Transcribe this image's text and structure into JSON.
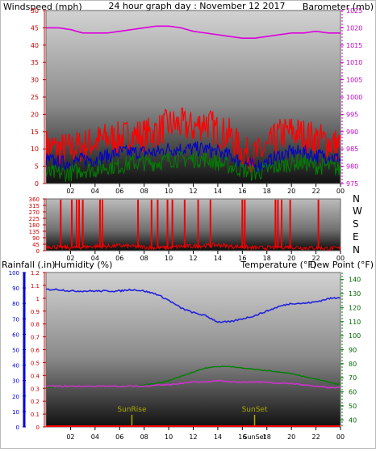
{
  "colors": {
    "wind_gust": "#ff0000",
    "wind_avg": "#0000cc",
    "wind_low": "#008000",
    "barometer": "#dd00dd",
    "direction": "#ee0000",
    "rain": "#ff0000",
    "humidity": "#2222dd",
    "temperature": "#008000",
    "dewpoint": "#cc33cc",
    "sun": "#aaaa00"
  },
  "top": {
    "left_axis_label": "Windspeed (mph)",
    "center_title": "24 hour graph day : November 12 2017",
    "right_axis_label": "Barometer (mb)"
  },
  "middle": {
    "compass_labels": [
      "N",
      "W",
      "S",
      "E",
      "N"
    ]
  },
  "bottom": {
    "rain_label": "Rainfall (.in)",
    "humidity_label": "Humidity (%)",
    "temp_label": "Temperature (°F)",
    "dew_label": "Dew Point (°F)",
    "sunrise_label": "SunRise",
    "sunset_label": "SunSet",
    "sunset_tick_label": "SunSet"
  },
  "chart_data": [
    {
      "type": "line",
      "name": "wind_and_barometer",
      "x_ticks": [
        "02",
        "04",
        "06",
        "08",
        "10",
        "12",
        "14",
        "16",
        "18",
        "20",
        "22",
        "00"
      ],
      "xlim": [
        0,
        24
      ],
      "ylabel": "Windspeed (mph)",
      "ylim": [
        0,
        50
      ],
      "y_ticks": [
        0,
        5,
        10,
        15,
        20,
        25,
        30,
        35,
        40,
        45,
        50
      ],
      "y2label": "Barometer (mb)",
      "y2lim": [
        975,
        1025
      ],
      "y2_ticks": [
        975,
        980,
        985,
        990,
        995,
        1000,
        1005,
        1010,
        1015,
        1020,
        1025
      ],
      "series": [
        {
          "key": "wind_gust",
          "axis": "y",
          "x": [
            0,
            1,
            2,
            3,
            4,
            5,
            6,
            7,
            8,
            9,
            10,
            11,
            12,
            13,
            14,
            15,
            16,
            17,
            18,
            19,
            20,
            21,
            22,
            23,
            24
          ],
          "values": [
            11,
            10,
            10,
            11,
            12,
            13,
            13,
            14,
            14,
            15,
            17,
            17,
            16,
            18,
            15,
            14,
            9,
            8,
            10,
            14,
            15,
            14,
            13,
            12,
            11
          ]
        },
        {
          "key": "wind_avg",
          "axis": "y",
          "x": [
            0,
            1,
            2,
            3,
            4,
            5,
            6,
            7,
            8,
            9,
            10,
            11,
            12,
            13,
            14,
            15,
            16,
            17,
            18,
            19,
            20,
            21,
            22,
            23,
            24
          ],
          "values": [
            7,
            6,
            6,
            7,
            7,
            8,
            9,
            9,
            9,
            9,
            10,
            10,
            10,
            10,
            9,
            8,
            6,
            5,
            6,
            8,
            9,
            9,
            8,
            8,
            7
          ]
        },
        {
          "key": "wind_low",
          "axis": "y",
          "x": [
            0,
            1,
            2,
            3,
            4,
            5,
            6,
            7,
            8,
            9,
            10,
            11,
            12,
            13,
            14,
            15,
            16,
            17,
            18,
            19,
            20,
            21,
            22,
            23,
            24
          ],
          "values": [
            3,
            3,
            3,
            4,
            4,
            5,
            5,
            6,
            6,
            6,
            7,
            7,
            7,
            7,
            6,
            5,
            4,
            3,
            4,
            5,
            6,
            6,
            5,
            5,
            4
          ]
        },
        {
          "key": "barometer",
          "axis": "y2",
          "x": [
            0,
            1,
            2,
            3,
            4,
            5,
            6,
            7,
            8,
            9,
            10,
            11,
            12,
            13,
            14,
            15,
            16,
            17,
            18,
            19,
            20,
            21,
            22,
            23,
            24
          ],
          "values": [
            1020,
            1020,
            1019.5,
            1018.5,
            1018.5,
            1018.5,
            1019,
            1019.5,
            1020,
            1020.5,
            1020.5,
            1020,
            1019,
            1018.5,
            1018,
            1017.5,
            1017,
            1017,
            1017.5,
            1018,
            1018.5,
            1018.5,
            1019,
            1018.5,
            1018.5
          ]
        }
      ]
    },
    {
      "type": "line",
      "name": "wind_direction",
      "x_ticks": [
        "02",
        "04",
        "06",
        "08",
        "10",
        "12",
        "14",
        "16",
        "18",
        "20",
        "22",
        "00"
      ],
      "xlim": [
        0,
        24
      ],
      "ylim": [
        0,
        360
      ],
      "y_ticks": [
        0,
        45,
        90,
        135,
        180,
        225,
        270,
        315,
        360
      ],
      "series": [
        {
          "key": "direction",
          "x": [
            0,
            1,
            2,
            3,
            4,
            5,
            6,
            7,
            8,
            9,
            10,
            11,
            12,
            13,
            14,
            15,
            16,
            17,
            18,
            19,
            20,
            21,
            22,
            23,
            24
          ],
          "values": [
            30,
            25,
            20,
            25,
            30,
            30,
            35,
            30,
            25,
            20,
            20,
            30,
            30,
            35,
            40,
            30,
            25,
            20,
            20,
            25,
            25,
            20,
            20,
            15,
            15
          ]
        }
      ],
      "spikes_x": [
        1.2,
        2.1,
        2.5,
        2.7,
        3.0,
        4.4,
        4.6,
        7.5,
        8.6,
        9.1,
        9.9,
        10.3,
        11.3,
        12.4,
        13.4,
        16.0,
        16.2,
        18.7,
        18.9,
        19.2,
        19.9,
        22.2
      ]
    },
    {
      "type": "line",
      "name": "rain_humidity_temperature",
      "x_ticks": [
        "02",
        "04",
        "06",
        "08",
        "10",
        "12",
        "14",
        "16",
        "18",
        "20",
        "22",
        "00"
      ],
      "xlim": [
        0,
        24
      ],
      "humidity_ticks": [
        0,
        10,
        20,
        30,
        40,
        50,
        60,
        70,
        80,
        90,
        100
      ],
      "humidity_lim": [
        0,
        100
      ],
      "rain_ticks": [
        0,
        0.1,
        0.2,
        0.3,
        0.4,
        0.5,
        0.6,
        0.7,
        0.8,
        0.9,
        1,
        1.1,
        1.2
      ],
      "rain_lim": [
        0,
        1.2
      ],
      "temp_ticks": [
        40,
        50,
        60,
        70,
        80,
        90,
        100,
        110,
        120,
        130,
        140
      ],
      "temp_lim": [
        35,
        145
      ],
      "sunrise_x": 7.0,
      "sunset_x": 17.0,
      "series": [
        {
          "key": "rain",
          "axis": "rain",
          "x": [
            0,
            24
          ],
          "values": [
            0,
            0
          ]
        },
        {
          "key": "humidity",
          "axis": "humidity",
          "x": [
            0,
            1,
            2,
            3,
            4,
            5,
            6,
            7,
            8,
            9,
            10,
            11,
            12,
            13,
            14,
            15,
            16,
            17,
            18,
            19,
            20,
            21,
            22,
            23,
            24
          ],
          "values": [
            89,
            89,
            88,
            88,
            88,
            88,
            88,
            89,
            88,
            86,
            82,
            77,
            74,
            72,
            68,
            68,
            70,
            72,
            75,
            78,
            80,
            80,
            81,
            83,
            84
          ]
        },
        {
          "key": "temperature",
          "axis": "temp",
          "x": [
            0,
            1,
            2,
            3,
            4,
            5,
            6,
            7,
            8,
            9,
            10,
            11,
            12,
            13,
            14,
            15,
            16,
            17,
            18,
            19,
            20,
            21,
            22,
            23,
            24
          ],
          "values": [
            63,
            64,
            64,
            64,
            64,
            64,
            64,
            64,
            65,
            66,
            68,
            71,
            74,
            77,
            78,
            78,
            77,
            76,
            75,
            74,
            73,
            71,
            69,
            67,
            65
          ]
        },
        {
          "key": "dewpoint",
          "axis": "temp",
          "x": [
            0,
            1,
            2,
            3,
            4,
            5,
            6,
            7,
            8,
            9,
            10,
            11,
            12,
            13,
            14,
            15,
            16,
            17,
            18,
            19,
            20,
            21,
            22,
            23,
            24
          ],
          "values": [
            64,
            64,
            64,
            64,
            64,
            64,
            64,
            64,
            64,
            65,
            65,
            66,
            67,
            67,
            68,
            67,
            67,
            67,
            67,
            66,
            66,
            65,
            64,
            63,
            63
          ]
        }
      ]
    }
  ]
}
